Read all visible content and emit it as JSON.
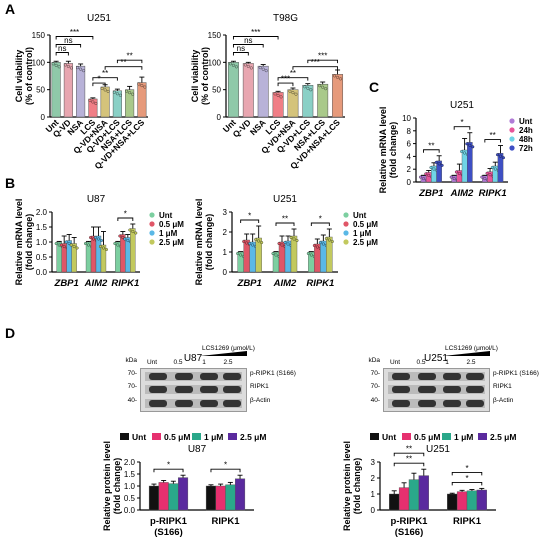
{
  "panels": {
    "A": "A",
    "B": "B",
    "C": "C",
    "D": "D"
  },
  "colors": {
    "unt": "#8fc9a9",
    "qvd": "#e8a6b0",
    "nsa": "#b8b2d8",
    "lcs": "#f07e86",
    "qvd_nsa": "#d4c37b",
    "qvd_lcs": "#8ad0c6",
    "nsa_lcs": "#a9c98a",
    "qvd_nsa_lcs": "#e69a7b",
    "dose_unt": "#7ccfa0",
    "dose_05": "#e05667",
    "dose_1": "#5ab8e6",
    "dose_25": "#c2c95e",
    "t_unt": "#b07bd6",
    "t_24": "#e8559a",
    "t_48": "#6fd4e6",
    "t_72": "#3e4fc4",
    "d_unt": "#111111",
    "d_05": "#e6306f",
    "d_1": "#2aa88a",
    "d_25": "#5a2a9e"
  },
  "chart_data": [
    {
      "id": "A-U251",
      "type": "bar",
      "title": "U251",
      "ylabel": "Cell viability (% of control)",
      "ylim": [
        0,
        150
      ],
      "yticks": [
        "0",
        "50",
        "100",
        "150"
      ],
      "categories": [
        "Unt",
        "Q-VD",
        "NSA",
        "LCS",
        "Q-VD+NSA",
        "Q-VD+LCS",
        "NSA+LCS",
        "Q-VD+NSA+LCS"
      ],
      "values": [
        100,
        98,
        93,
        33,
        55,
        48,
        50,
        63
      ],
      "errors": [
        2,
        4,
        4,
        2,
        4,
        3,
        6,
        10
      ],
      "sig": [
        {
          "a": 0,
          "b": 1,
          "label": "ns"
        },
        {
          "a": 0,
          "b": 2,
          "label": "ns"
        },
        {
          "a": 0,
          "b": 3,
          "label": "***"
        },
        {
          "a": 3,
          "b": 4,
          "label": "*"
        },
        {
          "a": 3,
          "b": 5,
          "label": "**"
        },
        {
          "a": 4,
          "b": 7,
          "label": "**"
        },
        {
          "a": 5,
          "b": 7,
          "label": "**"
        }
      ]
    },
    {
      "id": "A-T98G",
      "type": "bar",
      "title": "T98G",
      "ylabel": "Cell viability (% of control)",
      "ylim": [
        0,
        150
      ],
      "yticks": [
        "0",
        "50",
        "100",
        "150"
      ],
      "categories": [
        "Unt",
        "Q-VD",
        "NSA",
        "LCS",
        "Q-VD+NSA",
        "Q-VD+LCS",
        "NSA+LCS",
        "Q-VD+NSA+LCS"
      ],
      "values": [
        100,
        98,
        93,
        45,
        50,
        58,
        60,
        78
      ],
      "errors": [
        2,
        2,
        3,
        2,
        3,
        3,
        4,
        8
      ],
      "sig": [
        {
          "a": 0,
          "b": 1,
          "label": "ns"
        },
        {
          "a": 0,
          "b": 2,
          "label": "ns"
        },
        {
          "a": 0,
          "b": 3,
          "label": "***"
        },
        {
          "a": 3,
          "b": 4,
          "label": "***"
        },
        {
          "a": 3,
          "b": 5,
          "label": "**"
        },
        {
          "a": 4,
          "b": 7,
          "label": "***"
        },
        {
          "a": 5,
          "b": 7,
          "label": "***"
        }
      ]
    },
    {
      "id": "B-U87",
      "type": "bar",
      "title": "U87",
      "ylabel": "Relative mRNA level (fold change)",
      "ylim": [
        0,
        2.0
      ],
      "yticks": [
        "0.0",
        "0.5",
        "1.0",
        "1.5",
        "2.0"
      ],
      "categories": [
        "ZBP1",
        "AIM2",
        "RIPK1"
      ],
      "series": [
        {
          "name": "Unt",
          "values": [
            1.0,
            1.0,
            1.0
          ]
        },
        {
          "name": "0.5 μM",
          "values": [
            0.95,
            1.2,
            1.25
          ]
        },
        {
          "name": "1 μM",
          "values": [
            1.05,
            1.2,
            1.15
          ]
        },
        {
          "name": "2.5 μM",
          "values": [
            0.95,
            0.9,
            1.45
          ]
        }
      ],
      "errors": [
        [
          0.02,
          0.02,
          0.02
        ],
        [
          0.25,
          0.3,
          0.1
        ],
        [
          0.2,
          0.3,
          0.1
        ],
        [
          0.2,
          0.45,
          0.15
        ]
      ],
      "legend": [
        "Unt",
        "0.5 μM",
        "1 μM",
        "2.5 μM"
      ],
      "sig": [
        {
          "group": 2,
          "label": "*"
        }
      ]
    },
    {
      "id": "B-U251",
      "type": "bar",
      "title": "U251",
      "ylabel": "Relative mRNA level (fold change)",
      "ylim": [
        0,
        3
      ],
      "yticks": [
        "0",
        "1",
        "2",
        "3"
      ],
      "categories": [
        "ZBP1",
        "AIM2",
        "RIPK1"
      ],
      "series": [
        {
          "name": "Unt",
          "values": [
            1.0,
            1.0,
            1.0
          ]
        },
        {
          "name": "0.5 μM",
          "values": [
            1.6,
            1.5,
            1.4
          ]
        },
        {
          "name": "1 μM",
          "values": [
            1.5,
            1.55,
            1.55
          ]
        },
        {
          "name": "2.5 μM",
          "values": [
            1.7,
            1.8,
            1.75
          ]
        }
      ],
      "errors": [
        [
          0.02,
          0.02,
          0.02
        ],
        [
          0.3,
          0.3,
          0.25
        ],
        [
          0.4,
          0.25,
          0.3
        ],
        [
          0.6,
          0.35,
          0.4
        ]
      ],
      "legend": [
        "Unt",
        "0.5 μM",
        "1 μM",
        "2.5 μM"
      ],
      "sig": [
        {
          "group": 0,
          "label": "*"
        },
        {
          "group": 1,
          "label": "**"
        },
        {
          "group": 2,
          "label": "*"
        }
      ]
    },
    {
      "id": "C-U251",
      "type": "bar",
      "title": "U251",
      "ylabel": "Relative mRNA level (fold change)",
      "ylim": [
        0,
        10
      ],
      "yticks": [
        "0",
        "2",
        "4",
        "6",
        "8",
        "10"
      ],
      "categories": [
        "ZBP1",
        "AIM2",
        "RIPK1"
      ],
      "series": [
        {
          "name": "Unt",
          "values": [
            1.0,
            1.0,
            1.0
          ]
        },
        {
          "name": "24h",
          "values": [
            1.5,
            1.8,
            1.6
          ]
        },
        {
          "name": "48h",
          "values": [
            2.5,
            5.0,
            2.5
          ]
        },
        {
          "name": "72h",
          "values": [
            3.3,
            6.2,
            4.5
          ]
        }
      ],
      "errors": [
        [
          0.05,
          0.05,
          0.05
        ],
        [
          0.3,
          1.0,
          0.5
        ],
        [
          0.5,
          1.8,
          0.6
        ],
        [
          0.8,
          1.5,
          1.2
        ]
      ],
      "legend": [
        "Unt",
        "24h",
        "48h",
        "72h"
      ],
      "sig": [
        {
          "group": 0,
          "label": "**"
        },
        {
          "group": 1,
          "label": "*"
        },
        {
          "group": 2,
          "label": "**"
        }
      ]
    },
    {
      "id": "D-U87",
      "type": "bar",
      "title": "U87",
      "ylabel": "Relative protein level (fold change)",
      "ylim": [
        0,
        2.0
      ],
      "yticks": [
        "0.0",
        "0.5",
        "1.0",
        "1.5",
        "2.0"
      ],
      "categories": [
        "p-RIPK1 (S166)",
        "RIPK1"
      ],
      "series": [
        {
          "name": "Unt",
          "values": [
            1.0,
            1.0
          ]
        },
        {
          "name": "0.5 μM",
          "values": [
            1.15,
            1.0
          ]
        },
        {
          "name": "1 μM",
          "values": [
            1.1,
            1.05
          ]
        },
        {
          "name": "2.5 μM",
          "values": [
            1.35,
            1.3
          ]
        }
      ],
      "errors": [
        [
          0.08,
          0.05
        ],
        [
          0.08,
          0.08
        ],
        [
          0.1,
          0.1
        ],
        [
          0.1,
          0.15
        ]
      ],
      "legend": [
        "Unt",
        "0.5 μM",
        "1 μM",
        "2.5 μM"
      ],
      "sig": [
        {
          "group": 0,
          "label": "*"
        },
        {
          "group": 1,
          "label": "*"
        }
      ]
    },
    {
      "id": "D-U251",
      "type": "bar",
      "title": "U251",
      "ylabel": "Relative protein level (fold change)",
      "ylim": [
        0,
        3
      ],
      "yticks": [
        "0",
        "1",
        "2",
        "3"
      ],
      "categories": [
        "p-RIPK1 (S166)",
        "RIPK1"
      ],
      "series": [
        {
          "name": "Unt",
          "values": [
            1.0,
            1.0
          ]
        },
        {
          "name": "0.5 μM",
          "values": [
            1.4,
            1.15
          ]
        },
        {
          "name": "1 μM",
          "values": [
            1.9,
            1.2
          ]
        },
        {
          "name": "2.5 μM",
          "values": [
            2.15,
            1.25
          ]
        }
      ],
      "errors": [
        [
          0.2,
          0.05
        ],
        [
          0.3,
          0.08
        ],
        [
          0.4,
          0.08
        ],
        [
          0.4,
          0.1
        ]
      ],
      "legend": [
        "Unt",
        "0.5 μM",
        "1 μM",
        "2.5 μM"
      ],
      "sig": [
        {
          "group": 0,
          "label": "**"
        },
        {
          "group": 0,
          "label": "**"
        },
        {
          "group": 1,
          "label": "*"
        },
        {
          "group": 1,
          "label": "*"
        }
      ]
    }
  ],
  "blots": {
    "U87": {
      "title": "U87",
      "dose_label": "LCS1269 (μmol/L)",
      "lanes": [
        "Unt",
        "0.5",
        "1",
        "2.5"
      ],
      "kda": [
        "kDa",
        "70-",
        "70-",
        "40-"
      ],
      "rows": [
        "p-RIPK1 (S166)",
        "RIPK1",
        "β-Actin"
      ]
    },
    "U251": {
      "title": "U251",
      "dose_label": "LCS1269 (μmol/L)",
      "lanes": [
        "Unt",
        "0.5",
        "1",
        "2.5"
      ],
      "kda": [
        "kDa",
        "70-",
        "70-",
        "40-"
      ],
      "rows": [
        "p-RIPK1 (S166)",
        "RIPK1",
        "β-Actin"
      ]
    }
  }
}
